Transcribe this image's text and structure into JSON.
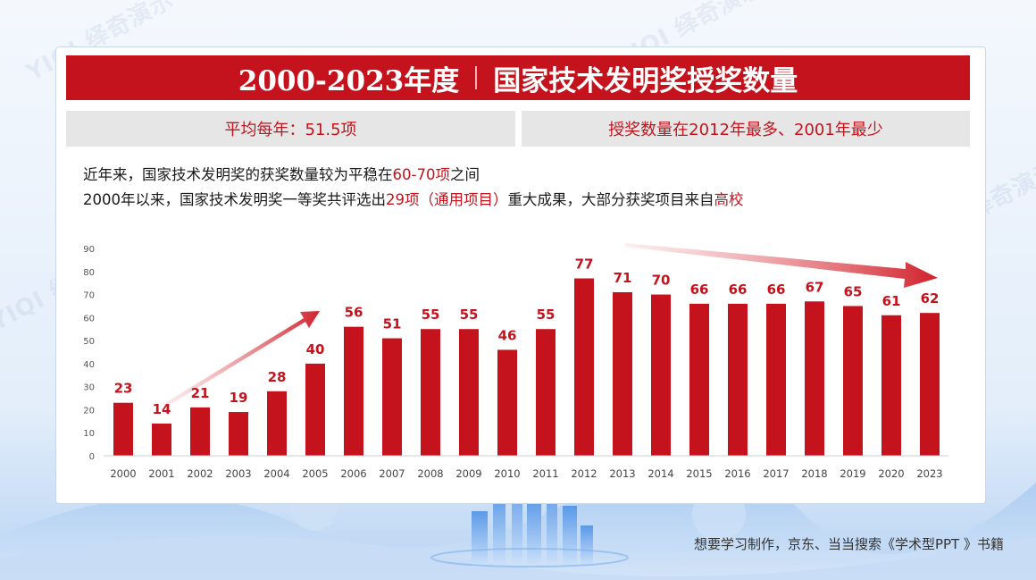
{
  "header": {
    "title_years": "2000-2023年度",
    "title_main": "国家技术发明奖授奖数量",
    "brand_watermark": "YIQI 绎奇演示"
  },
  "stats": {
    "average": "平均每年：51.5项",
    "extremes": "授奖数量在2012年最多、2001年最少"
  },
  "description": {
    "line1_pre": "近年来，国家技术发明奖的获奖数量较为平稳在",
    "line1_hl": "60-70项",
    "line1_post": "之间",
    "line2_pre": "2000年以来，国家技术发明奖一等奖共评选出",
    "line2_hl1": "29项（通用项目）",
    "line2_mid": "重大成果，大部分获奖项目来自",
    "line2_hl2": "高校"
  },
  "footer": {
    "note": "想要学习制作，京东、当当搜索《学术型PPT 》书籍"
  },
  "colors": {
    "accent": "#c4131c",
    "bar": "#c4131c",
    "stat_bg": "#e6e6e6"
  },
  "chart_data": {
    "type": "bar",
    "categories": [
      "2000",
      "2001",
      "2002",
      "2003",
      "2004",
      "2005",
      "2006",
      "2007",
      "2008",
      "2009",
      "2010",
      "2011",
      "2012",
      "2013",
      "2014",
      "2015",
      "2016",
      "2017",
      "2018",
      "2019",
      "2020",
      "2023"
    ],
    "values": [
      23,
      14,
      21,
      19,
      28,
      40,
      56,
      51,
      55,
      55,
      46,
      55,
      77,
      71,
      70,
      66,
      66,
      66,
      67,
      65,
      61,
      62
    ],
    "ylim": [
      0,
      90
    ],
    "yticks": [
      0,
      10,
      20,
      30,
      40,
      50,
      60,
      70,
      80,
      90
    ],
    "grid": false,
    "data_labels": true,
    "annotations": [
      "rising trend arrow 2001–2005",
      "declining trend arrow 2013–2023"
    ]
  }
}
